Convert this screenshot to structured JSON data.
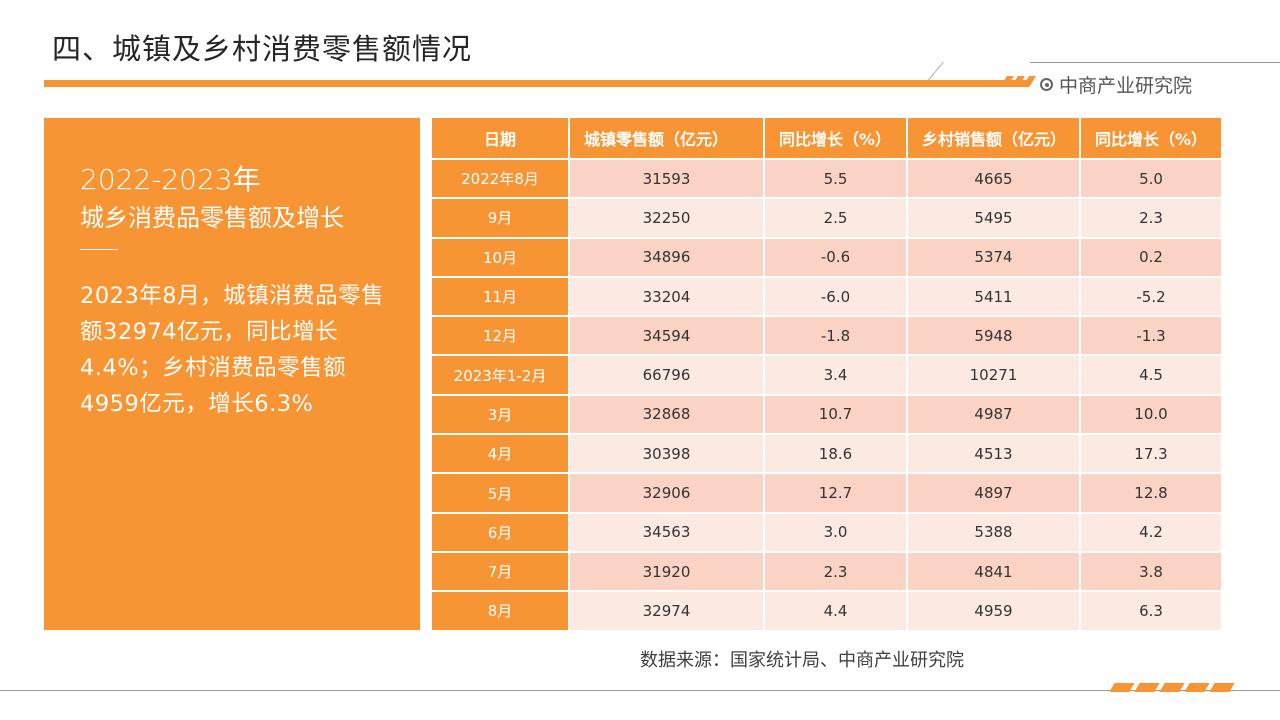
{
  "title": "四、城镇及乡村消费零售额情况",
  "brand": "中商产业研究院",
  "panel": {
    "year": "2022-2023年",
    "subtitle": "城乡消费品零售额及增长",
    "body": "2023年8月，城镇消费品零售额32974亿元，同比增长4.4%；乡村消费品零售额4959亿元，增长6.3%"
  },
  "table": {
    "headers": [
      "日期",
      "城镇零售额（亿元）",
      "同比增长（%）",
      "乡村销售额（亿元）",
      "同比增长（%）"
    ],
    "rows": [
      [
        "2022年8月",
        "31593",
        "5.5",
        "4665",
        "5.0"
      ],
      [
        "9月",
        "32250",
        "2.5",
        "5495",
        "2.3"
      ],
      [
        "10月",
        "34896",
        "-0.6",
        "5374",
        "0.2"
      ],
      [
        "11月",
        "33204",
        "-6.0",
        "5411",
        "-5.2"
      ],
      [
        "12月",
        "34594",
        "-1.8",
        "5948",
        "-1.3"
      ],
      [
        "2023年1-2月",
        "66796",
        "3.4",
        "10271",
        "4.5"
      ],
      [
        "3月",
        "32868",
        "10.7",
        "4987",
        "10.0"
      ],
      [
        "4月",
        "30398",
        "18.6",
        "4513",
        "17.3"
      ],
      [
        "5月",
        "32906",
        "12.7",
        "4897",
        "12.8"
      ],
      [
        "6月",
        "34563",
        "3.0",
        "5388",
        "4.2"
      ],
      [
        "7月",
        "31920",
        "2.3",
        "4841",
        "3.8"
      ],
      [
        "8月",
        "32974",
        "4.4",
        "4959",
        "6.3"
      ]
    ]
  },
  "source": "数据来源：国家统计局、中商产业研究院",
  "colors": {
    "accent": "#f79433",
    "row_dark": "#fad3c4",
    "row_light": "#fceae2"
  }
}
